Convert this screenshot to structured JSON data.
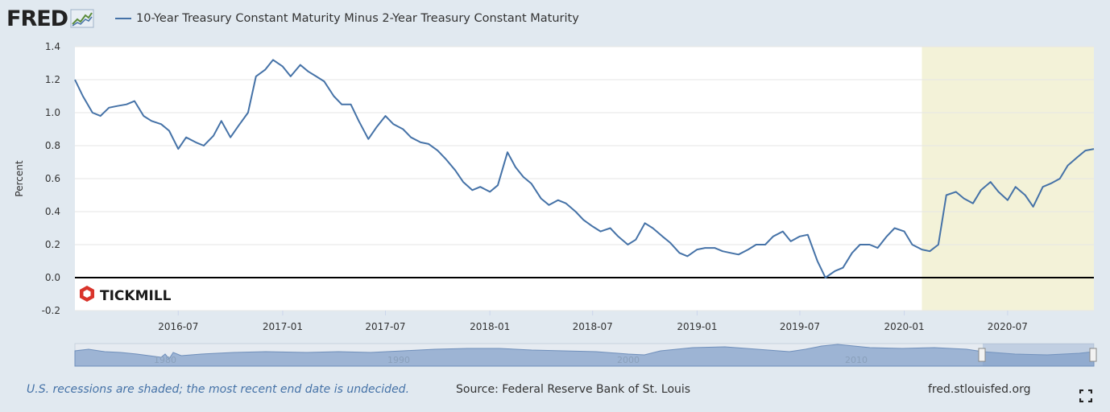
{
  "header": {
    "logo_text": "FRED",
    "title": "10-Year Treasury Constant Maturity Minus 2-Year Treasury Constant Maturity"
  },
  "footer": {
    "recession_note": "U.S. recessions are shaded; the most recent end date is undecided.",
    "source": "Source: Federal Reserve Bank of St. Louis",
    "site": "fred.stlouisfed.org"
  },
  "watermark": {
    "text": "TICKMILL"
  },
  "colors": {
    "line": "#4572a7",
    "recession": "#f3f2d8",
    "background": "#e1e9f0",
    "plot": "#ffffff",
    "navigator": "#7a9cc6"
  },
  "chart_data": {
    "type": "line",
    "ylabel": "Percent",
    "ylim": [
      -0.2,
      1.4
    ],
    "y_ticks": [
      "-0.2",
      "0.0",
      "0.2",
      "0.4",
      "0.6",
      "0.8",
      "1.0",
      "1.2",
      "1.4"
    ],
    "xlim": [
      "2016-01-01",
      "2020-11-30"
    ],
    "x_ticks": [
      "2016-07",
      "2017-01",
      "2017-07",
      "2018-01",
      "2018-07",
      "2019-01",
      "2019-07",
      "2020-01",
      "2020-07"
    ],
    "grid": "horizontal",
    "recession_shading": [
      [
        "2020-02-01",
        "2020-11-30"
      ]
    ],
    "navigator_labels": [
      "1980",
      "1990",
      "2000",
      "2010"
    ],
    "series": [
      {
        "x": [
          "2016-01-01",
          "2016-01-15",
          "2016-02-01",
          "2016-02-15",
          "2016-03-01",
          "2016-03-15",
          "2016-04-01",
          "2016-04-15",
          "2016-05-01",
          "2016-05-15",
          "2016-06-01",
          "2016-06-15",
          "2016-07-01",
          "2016-07-15",
          "2016-08-01",
          "2016-08-15",
          "2016-09-01",
          "2016-09-15",
          "2016-10-01",
          "2016-10-15",
          "2016-11-01",
          "2016-11-15",
          "2016-12-01",
          "2016-12-15",
          "2017-01-01",
          "2017-01-15",
          "2017-02-01",
          "2017-02-15",
          "2017-03-01",
          "2017-03-15",
          "2017-04-01",
          "2017-04-15",
          "2017-05-01",
          "2017-05-15",
          "2017-06-01",
          "2017-06-15",
          "2017-07-01",
          "2017-07-15",
          "2017-08-01",
          "2017-08-15",
          "2017-09-01",
          "2017-09-15",
          "2017-10-01",
          "2017-10-15",
          "2017-11-01",
          "2017-11-15",
          "2017-12-01",
          "2017-12-15",
          "2018-01-01",
          "2018-01-15",
          "2018-02-01",
          "2018-02-15",
          "2018-03-01",
          "2018-03-15",
          "2018-04-01",
          "2018-04-15",
          "2018-05-01",
          "2018-05-15",
          "2018-06-01",
          "2018-06-15",
          "2018-07-01",
          "2018-07-15",
          "2018-08-01",
          "2018-08-15",
          "2018-09-01",
          "2018-09-15",
          "2018-10-01",
          "2018-10-15",
          "2018-11-01",
          "2018-11-15",
          "2018-12-01",
          "2018-12-15",
          "2019-01-01",
          "2019-01-15",
          "2019-02-01",
          "2019-02-15",
          "2019-03-01",
          "2019-03-15",
          "2019-04-01",
          "2019-04-15",
          "2019-05-01",
          "2019-05-15",
          "2019-06-01",
          "2019-06-15",
          "2019-07-01",
          "2019-07-15",
          "2019-08-01",
          "2019-08-15",
          "2019-09-01",
          "2019-09-15",
          "2019-10-01",
          "2019-10-15",
          "2019-11-01",
          "2019-11-15",
          "2019-12-01",
          "2019-12-15",
          "2020-01-01",
          "2020-01-15",
          "2020-02-01",
          "2020-02-15",
          "2020-03-01",
          "2020-03-15",
          "2020-04-01",
          "2020-04-15",
          "2020-05-01",
          "2020-05-15",
          "2020-06-01",
          "2020-06-15",
          "2020-07-01",
          "2020-07-15",
          "2020-08-01",
          "2020-08-15",
          "2020-09-01",
          "2020-09-15",
          "2020-10-01",
          "2020-10-15",
          "2020-11-01",
          "2020-11-15",
          "2020-11-30"
        ],
        "values": [
          1.2,
          1.1,
          1.0,
          0.98,
          1.03,
          1.04,
          1.05,
          1.07,
          0.98,
          0.95,
          0.93,
          0.89,
          0.78,
          0.85,
          0.82,
          0.8,
          0.86,
          0.95,
          0.85,
          0.92,
          1.0,
          1.22,
          1.26,
          1.32,
          1.28,
          1.22,
          1.29,
          1.25,
          1.22,
          1.19,
          1.1,
          1.05,
          1.05,
          0.95,
          0.84,
          0.91,
          0.98,
          0.93,
          0.9,
          0.85,
          0.82,
          0.81,
          0.77,
          0.72,
          0.65,
          0.58,
          0.53,
          0.55,
          0.52,
          0.56,
          0.76,
          0.67,
          0.61,
          0.57,
          0.48,
          0.44,
          0.47,
          0.45,
          0.4,
          0.35,
          0.31,
          0.28,
          0.3,
          0.25,
          0.2,
          0.23,
          0.33,
          0.3,
          0.25,
          0.21,
          0.15,
          0.13,
          0.17,
          0.18,
          0.18,
          0.16,
          0.15,
          0.14,
          0.17,
          0.2,
          0.2,
          0.25,
          0.28,
          0.22,
          0.25,
          0.26,
          0.1,
          0.0,
          0.04,
          0.06,
          0.15,
          0.2,
          0.2,
          0.18,
          0.25,
          0.3,
          0.28,
          0.2,
          0.17,
          0.16,
          0.2,
          0.5,
          0.52,
          0.48,
          0.45,
          0.53,
          0.58,
          0.52,
          0.47,
          0.55,
          0.5,
          0.43,
          0.55,
          0.57,
          0.6,
          0.68,
          0.73,
          0.77,
          0.78
        ]
      }
    ]
  }
}
